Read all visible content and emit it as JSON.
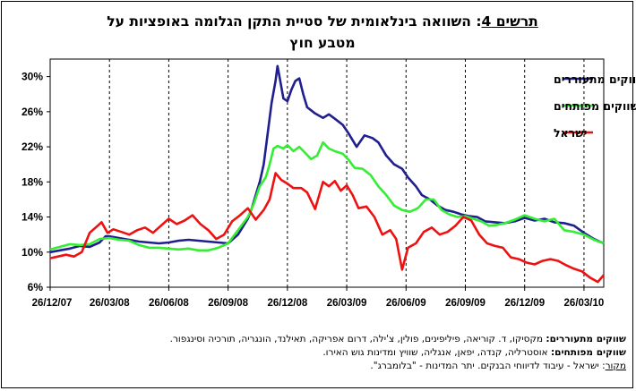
{
  "title": {
    "prefix": "תרשים 4",
    "line1_rest": ": השוואה בינלאומית של סטיית התקן הגלומה באופציות על",
    "line2": "מטבע חוץ"
  },
  "notes": {
    "emerging_label": "שווקים מתעוררים:",
    "emerging_text": "מקסיקו, ד. קוריאה, פיליפינים, פולין, צ'ילה, דרום אפריקה, תאילנד, הונגריה, תורכיה וסינגפור.",
    "developed_label": "שווקים מפותחים:",
    "developed_text": "אוסטרליה, קנדה, יפאן, אנגליה, שוויץ ומדינות גוש האירו.",
    "source_label": "מקור",
    "source_text": ": ישראל - עיבוד לדיווחי הבנקים. יתר המדינות - \"בלומברג\"."
  },
  "chart_data": {
    "type": "line",
    "x_tick_labels": [
      "26/12/07",
      "26/03/08",
      "26/06/08",
      "26/09/08",
      "26/12/08",
      "26/03/09",
      "26/06/09",
      "26/09/09",
      "26/12/09",
      "26/03/10"
    ],
    "y_tick_labels": [
      "6%",
      "10%",
      "14%",
      "18%",
      "22%",
      "26%",
      "30%"
    ],
    "ylim": [
      6,
      32
    ],
    "x_range_months": [
      0,
      28
    ],
    "grid": "vertical dashed at x ticks",
    "legend_position": "top-right",
    "series": [
      {
        "name": "ממוצע שווקים מתעוררים",
        "color": "#1f1f8f",
        "points": [
          [
            0,
            10.0
          ],
          [
            0.5,
            10.2
          ],
          [
            1,
            10.4
          ],
          [
            1.5,
            10.7
          ],
          [
            2,
            10.6
          ],
          [
            2.5,
            11.1
          ],
          [
            2.8,
            11.8
          ],
          [
            3,
            11.8
          ],
          [
            3.5,
            11.6
          ],
          [
            4,
            11.4
          ],
          [
            4.5,
            11.2
          ],
          [
            5,
            11.1
          ],
          [
            5.5,
            11.0
          ],
          [
            6,
            11.1
          ],
          [
            6.5,
            11.3
          ],
          [
            7,
            11.4
          ],
          [
            7.5,
            11.3
          ],
          [
            8,
            11.2
          ],
          [
            8.5,
            11.1
          ],
          [
            9,
            11.0
          ],
          [
            9.5,
            12.0
          ],
          [
            10,
            13.8
          ],
          [
            10.2,
            15.0
          ],
          [
            10.4,
            16.5
          ],
          [
            10.6,
            18.0
          ],
          [
            10.8,
            20.0
          ],
          [
            11.0,
            23.5
          ],
          [
            11.2,
            27.0
          ],
          [
            11.4,
            29.5
          ],
          [
            11.5,
            31.2
          ],
          [
            11.6,
            30.0
          ],
          [
            11.8,
            27.5
          ],
          [
            12.0,
            27.2
          ],
          [
            12.2,
            28.5
          ],
          [
            12.4,
            29.5
          ],
          [
            12.6,
            29.8
          ],
          [
            12.8,
            28.0
          ],
          [
            13.0,
            26.5
          ],
          [
            13.4,
            25.8
          ],
          [
            13.8,
            25.3
          ],
          [
            14.1,
            25.7
          ],
          [
            14.4,
            25.2
          ],
          [
            14.8,
            24.5
          ],
          [
            15.1,
            23.5
          ],
          [
            15.5,
            22.0
          ],
          [
            15.9,
            23.3
          ],
          [
            16.3,
            23.0
          ],
          [
            16.6,
            22.5
          ],
          [
            17.0,
            21.0
          ],
          [
            17.4,
            20.0
          ],
          [
            17.8,
            19.5
          ],
          [
            18.1,
            18.5
          ],
          [
            18.5,
            17.5
          ],
          [
            18.8,
            16.5
          ],
          [
            19.2,
            16.0
          ],
          [
            19.6,
            15.3
          ],
          [
            20.0,
            14.8
          ],
          [
            20.4,
            14.6
          ],
          [
            20.8,
            14.3
          ],
          [
            21.2,
            14.1
          ],
          [
            21.6,
            14.0
          ],
          [
            22.0,
            13.5
          ],
          [
            22.5,
            13.4
          ],
          [
            23.0,
            13.3
          ],
          [
            23.5,
            13.5
          ],
          [
            24.0,
            13.9
          ],
          [
            24.5,
            13.6
          ],
          [
            25.0,
            13.8
          ],
          [
            25.5,
            13.4
          ],
          [
            26.0,
            13.3
          ],
          [
            26.5,
            13.0
          ],
          [
            27.0,
            12.2
          ],
          [
            27.5,
            11.5
          ],
          [
            28.0,
            11.0
          ]
        ]
      },
      {
        "name": "ממוצע שווקים מפותחים",
        "color": "#33ee33",
        "points": [
          [
            0,
            10.3
          ],
          [
            0.5,
            10.6
          ],
          [
            1,
            10.9
          ],
          [
            1.5,
            10.8
          ],
          [
            2,
            10.9
          ],
          [
            2.5,
            11.5
          ],
          [
            3,
            11.6
          ],
          [
            3.5,
            11.4
          ],
          [
            4,
            11.3
          ],
          [
            4.5,
            10.8
          ],
          [
            5,
            10.5
          ],
          [
            5.5,
            10.5
          ],
          [
            6,
            10.4
          ],
          [
            6.5,
            10.3
          ],
          [
            7,
            10.4
          ],
          [
            7.5,
            10.2
          ],
          [
            8,
            10.2
          ],
          [
            8.5,
            10.5
          ],
          [
            9,
            11.0
          ],
          [
            9.5,
            12.5
          ],
          [
            10,
            14.0
          ],
          [
            10.3,
            15.5
          ],
          [
            10.6,
            17.5
          ],
          [
            10.9,
            18.5
          ],
          [
            11.1,
            20.0
          ],
          [
            11.3,
            21.8
          ],
          [
            11.5,
            22.1
          ],
          [
            11.8,
            21.8
          ],
          [
            12.0,
            22.2
          ],
          [
            12.3,
            21.5
          ],
          [
            12.6,
            22.0
          ],
          [
            12.9,
            21.3
          ],
          [
            13.2,
            20.6
          ],
          [
            13.5,
            21.0
          ],
          [
            13.8,
            22.5
          ],
          [
            14.1,
            21.8
          ],
          [
            14.4,
            21.5
          ],
          [
            14.8,
            21.2
          ],
          [
            15.1,
            20.5
          ],
          [
            15.4,
            19.6
          ],
          [
            15.8,
            19.5
          ],
          [
            16.2,
            18.8
          ],
          [
            16.6,
            17.5
          ],
          [
            17.0,
            16.5
          ],
          [
            17.4,
            15.3
          ],
          [
            17.8,
            14.8
          ],
          [
            18.2,
            14.6
          ],
          [
            18.6,
            15.0
          ],
          [
            19.0,
            16.0
          ],
          [
            19.4,
            16.0
          ],
          [
            19.8,
            14.8
          ],
          [
            20.2,
            14.3
          ],
          [
            20.6,
            14.0
          ],
          [
            21.0,
            14.1
          ],
          [
            21.4,
            13.8
          ],
          [
            21.8,
            13.5
          ],
          [
            22.2,
            13.0
          ],
          [
            22.6,
            13.1
          ],
          [
            23.0,
            13.3
          ],
          [
            23.5,
            13.7
          ],
          [
            24.0,
            14.2
          ],
          [
            24.5,
            13.8
          ],
          [
            25.0,
            13.5
          ],
          [
            25.5,
            13.8
          ],
          [
            26.0,
            12.5
          ],
          [
            26.5,
            12.3
          ],
          [
            27.0,
            12.0
          ],
          [
            27.5,
            11.4
          ],
          [
            28.0,
            11.0
          ]
        ]
      },
      {
        "name": "ישראל",
        "color": "#ee1111",
        "points": [
          [
            0,
            9.3
          ],
          [
            0.4,
            9.5
          ],
          [
            0.8,
            9.7
          ],
          [
            1.2,
            9.5
          ],
          [
            1.6,
            10.0
          ],
          [
            2.0,
            12.2
          ],
          [
            2.3,
            12.8
          ],
          [
            2.6,
            13.4
          ],
          [
            2.9,
            12.2
          ],
          [
            3.2,
            12.6
          ],
          [
            3.6,
            12.3
          ],
          [
            4.0,
            12.0
          ],
          [
            4.4,
            12.5
          ],
          [
            4.8,
            12.8
          ],
          [
            5.2,
            12.2
          ],
          [
            5.6,
            13.0
          ],
          [
            6.0,
            13.8
          ],
          [
            6.4,
            13.2
          ],
          [
            6.8,
            13.6
          ],
          [
            7.2,
            14.2
          ],
          [
            7.6,
            13.2
          ],
          [
            8.0,
            12.5
          ],
          [
            8.4,
            11.5
          ],
          [
            8.8,
            12.0
          ],
          [
            9.2,
            13.5
          ],
          [
            9.6,
            14.2
          ],
          [
            10.0,
            15.0
          ],
          [
            10.4,
            13.7
          ],
          [
            10.8,
            14.8
          ],
          [
            11.1,
            16.0
          ],
          [
            11.4,
            19.0
          ],
          [
            11.7,
            18.2
          ],
          [
            12.0,
            17.8
          ],
          [
            12.3,
            17.3
          ],
          [
            12.7,
            17.3
          ],
          [
            13.0,
            16.8
          ],
          [
            13.4,
            14.9
          ],
          [
            13.8,
            18.0
          ],
          [
            14.1,
            17.5
          ],
          [
            14.4,
            18.1
          ],
          [
            14.7,
            17.0
          ],
          [
            15.0,
            17.6
          ],
          [
            15.3,
            16.5
          ],
          [
            15.6,
            15.0
          ],
          [
            16.0,
            15.2
          ],
          [
            16.4,
            14.0
          ],
          [
            16.8,
            12.0
          ],
          [
            17.2,
            12.5
          ],
          [
            17.5,
            11.5
          ],
          [
            17.8,
            8.0
          ],
          [
            18.1,
            10.5
          ],
          [
            18.5,
            11.0
          ],
          [
            18.9,
            12.3
          ],
          [
            19.3,
            12.8
          ],
          [
            19.7,
            12.0
          ],
          [
            20.1,
            12.3
          ],
          [
            20.5,
            13.0
          ],
          [
            20.9,
            14.0
          ],
          [
            21.3,
            13.6
          ],
          [
            21.7,
            12.0
          ],
          [
            22.1,
            11.0
          ],
          [
            22.5,
            10.7
          ],
          [
            22.9,
            10.5
          ],
          [
            23.3,
            9.4
          ],
          [
            23.7,
            9.2
          ],
          [
            24.1,
            8.8
          ],
          [
            24.5,
            8.6
          ],
          [
            24.9,
            9.0
          ],
          [
            25.3,
            9.2
          ],
          [
            25.7,
            9.0
          ],
          [
            26.1,
            8.5
          ],
          [
            26.5,
            8.1
          ],
          [
            26.9,
            7.8
          ],
          [
            27.3,
            7.1
          ],
          [
            27.7,
            6.6
          ],
          [
            28.0,
            7.4
          ]
        ]
      }
    ]
  }
}
